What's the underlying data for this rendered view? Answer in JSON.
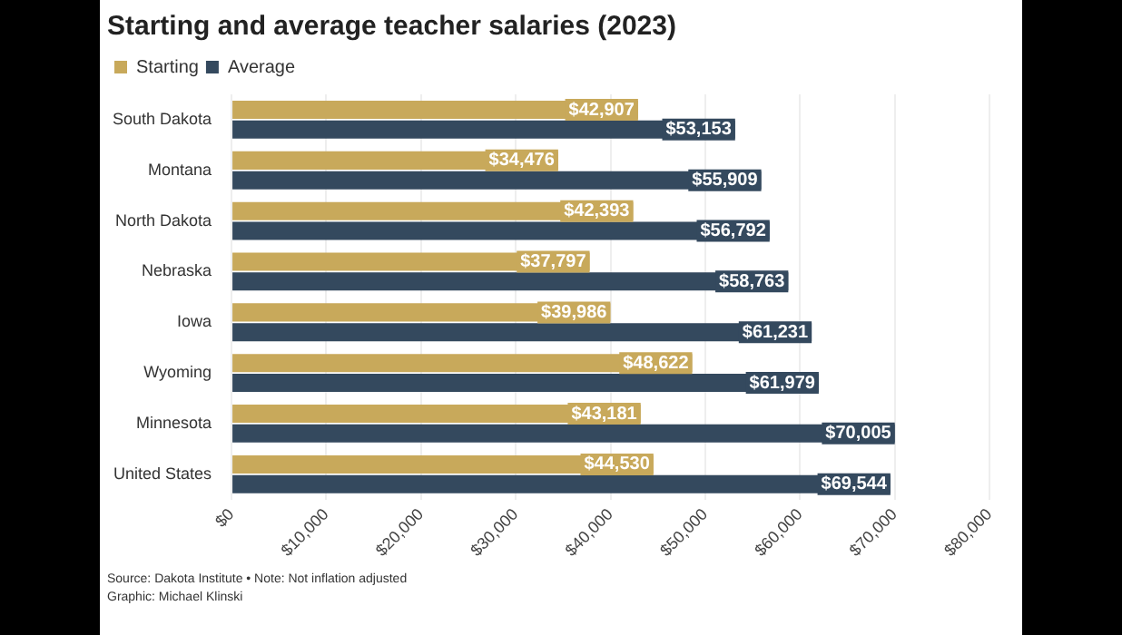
{
  "chart_data": {
    "type": "bar",
    "orientation": "horizontal",
    "title": "Starting and average teacher salaries (2023)",
    "categories": [
      "South Dakota",
      "Montana",
      "North Dakota",
      "Nebraska",
      "Iowa",
      "Wyoming",
      "Minnesota",
      "United States"
    ],
    "series": [
      {
        "name": "Starting",
        "color": "#c8a95b",
        "values": [
          42907,
          34476,
          42393,
          37797,
          39986,
          48622,
          43181,
          44530
        ],
        "value_labels": [
          "$42,907",
          "$34,476",
          "$42,393",
          "$37,797",
          "$39,986",
          "$48,622",
          "$43,181",
          "$44,530"
        ]
      },
      {
        "name": "Average",
        "color": "#34495e",
        "values": [
          53153,
          55909,
          56792,
          58763,
          61231,
          61979,
          70005,
          69544
        ],
        "value_labels": [
          "$53,153",
          "$55,909",
          "$56,792",
          "$58,763",
          "$61,231",
          "$61,979",
          "$70,005",
          "$69,544"
        ]
      }
    ],
    "xlim": [
      0,
      80000
    ],
    "xticks": [
      {
        "value": 0,
        "label": "$0"
      },
      {
        "value": 10000,
        "label": "$10,000"
      },
      {
        "value": 20000,
        "label": "$20,000"
      },
      {
        "value": 30000,
        "label": "$30,000"
      },
      {
        "value": 40000,
        "label": "$40,000"
      },
      {
        "value": 50000,
        "label": "$50,000"
      },
      {
        "value": 60000,
        "label": "$60,000"
      },
      {
        "value": 70000,
        "label": "$70,000"
      },
      {
        "value": 80000,
        "label": "$80,000"
      }
    ],
    "grid": "x",
    "legend": "top left",
    "annotations": [
      "Source: Dakota Institute • Note: Not inflation adjusted",
      "Graphic: Michael Klinski"
    ]
  }
}
